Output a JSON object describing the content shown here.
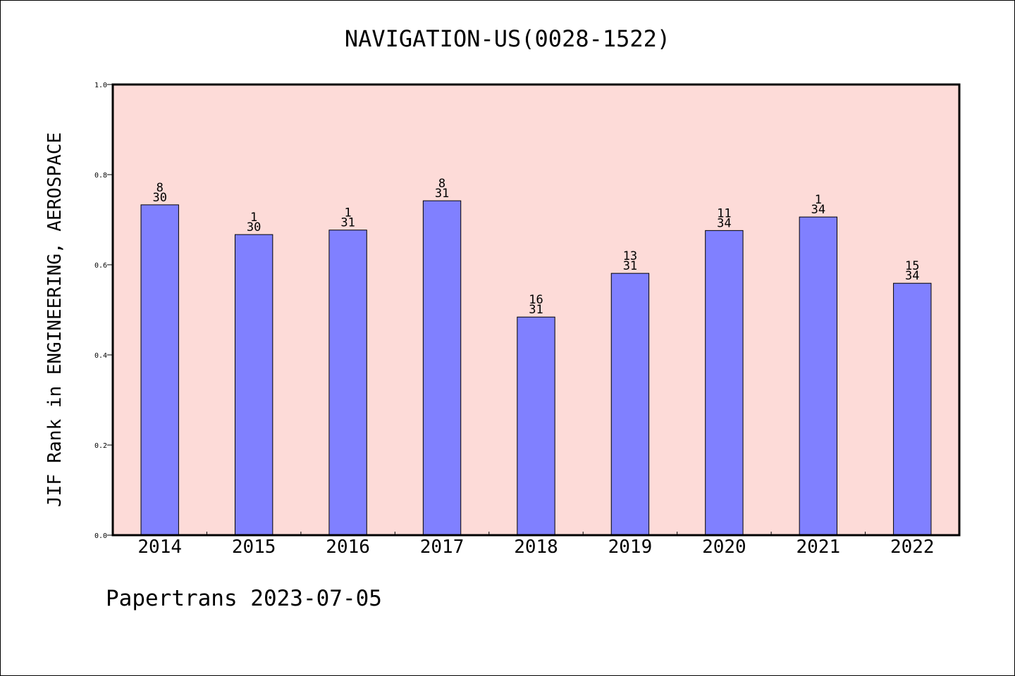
{
  "chart_data": {
    "type": "bar",
    "title": "NAVIGATION-US(0028-1522)",
    "xlabel": "",
    "ylabel": "JIF Rank in ENGINEERING, AEROSPACE",
    "categories": [
      "2014",
      "2015",
      "2016",
      "2017",
      "2018",
      "2019",
      "2020",
      "2021",
      "2022"
    ],
    "values": [
      0.733,
      0.667,
      0.677,
      0.742,
      0.484,
      0.581,
      0.676,
      0.706,
      0.559
    ],
    "bar_labels": [
      {
        "rank": "8",
        "total": "30"
      },
      {
        "rank": "1",
        "total": "30"
      },
      {
        "rank": "1",
        "total": "31"
      },
      {
        "rank": "8",
        "total": "31"
      },
      {
        "rank": "16",
        "total": "31"
      },
      {
        "rank": "13",
        "total": "31"
      },
      {
        "rank": "11",
        "total": "34"
      },
      {
        "rank": "1",
        "total": "34"
      },
      {
        "rank": "15",
        "total": "34"
      }
    ],
    "ylim": [
      0,
      1.0
    ],
    "yticks": [
      "0.0",
      "0.2",
      "0.4",
      "0.6",
      "0.8",
      "1.0"
    ],
    "grid": false,
    "legend": "none",
    "colors": {
      "bar_fill": "#8080ff",
      "plot_background": "#fddbd8",
      "bar_edge": "#000000"
    }
  },
  "footer": {
    "text": "Papertrans 2023-07-05"
  }
}
